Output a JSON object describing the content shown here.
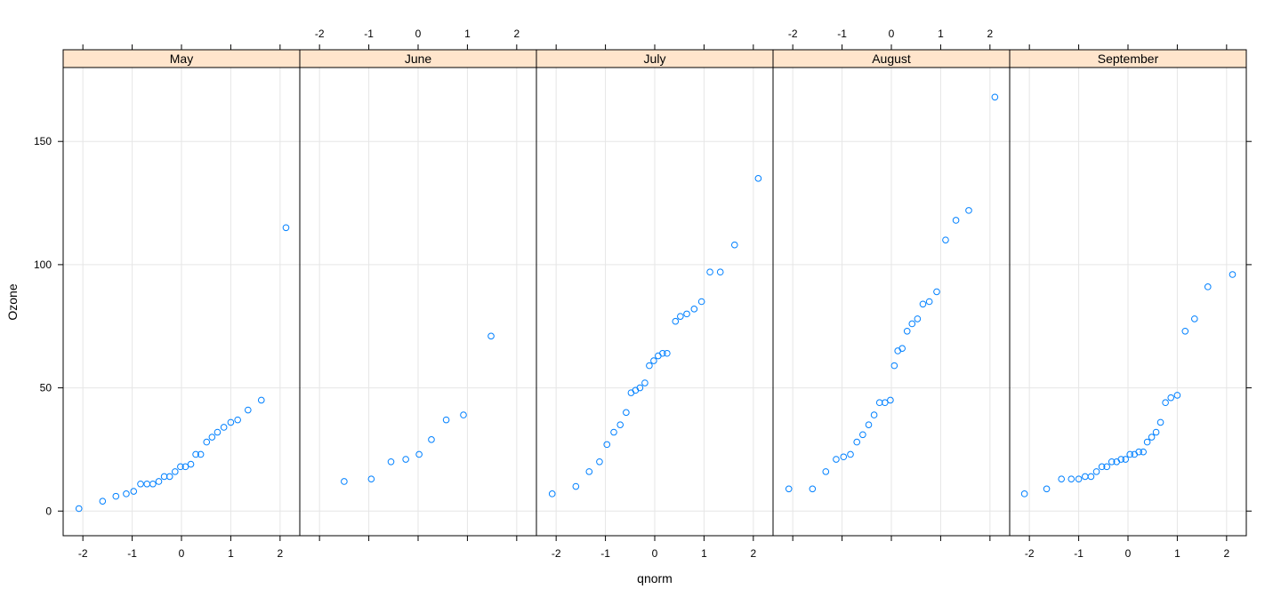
{
  "chart_data": {
    "type": "scatter",
    "subtype": "qq-plot-trellis",
    "xlabel": "qnorm",
    "ylabel": "Ozone",
    "xlim": [
      -2.4,
      2.4
    ],
    "ylim": [
      -10,
      180
    ],
    "x_ticks": [
      -2,
      -1,
      0,
      1,
      2
    ],
    "y_ticks": [
      0,
      50,
      100,
      150
    ],
    "grid": true,
    "colors": {
      "point": "#0080ff",
      "strip_bg": "#ffe5cc",
      "grid": "#e6e6e6",
      "axis": "#000000"
    },
    "panels": [
      {
        "name": "May",
        "points": [
          [
            -2.08,
            1
          ],
          [
            -1.6,
            4
          ],
          [
            -1.33,
            6
          ],
          [
            -1.12,
            7
          ],
          [
            -0.97,
            8
          ],
          [
            -0.83,
            11
          ],
          [
            -0.7,
            11
          ],
          [
            -0.58,
            11
          ],
          [
            -0.46,
            12
          ],
          [
            -0.35,
            14
          ],
          [
            -0.24,
            14
          ],
          [
            -0.13,
            16
          ],
          [
            -0.02,
            18
          ],
          [
            0.08,
            18
          ],
          [
            0.19,
            19
          ],
          [
            0.29,
            23
          ],
          [
            0.39,
            23
          ],
          [
            0.51,
            28
          ],
          [
            0.62,
            30
          ],
          [
            0.73,
            32
          ],
          [
            0.86,
            34
          ],
          [
            1.0,
            36
          ],
          [
            1.14,
            37
          ],
          [
            1.35,
            41
          ],
          [
            1.62,
            45
          ],
          [
            2.12,
            115
          ]
        ]
      },
      {
        "name": "June",
        "points": [
          [
            -1.5,
            12
          ],
          [
            -0.95,
            13
          ],
          [
            -0.55,
            20
          ],
          [
            -0.25,
            21
          ],
          [
            0.02,
            23
          ],
          [
            0.27,
            29
          ],
          [
            0.57,
            37
          ],
          [
            0.92,
            39
          ],
          [
            1.48,
            71
          ]
        ]
      },
      {
        "name": "July",
        "points": [
          [
            -2.08,
            7
          ],
          [
            -1.6,
            10
          ],
          [
            -1.33,
            16
          ],
          [
            -1.12,
            20
          ],
          [
            -0.97,
            27
          ],
          [
            -0.83,
            32
          ],
          [
            -0.7,
            35
          ],
          [
            -0.58,
            40
          ],
          [
            -0.48,
            48
          ],
          [
            -0.39,
            49
          ],
          [
            -0.3,
            50
          ],
          [
            -0.2,
            52
          ],
          [
            -0.11,
            59
          ],
          [
            -0.02,
            61
          ],
          [
            0.07,
            63
          ],
          [
            0.16,
            64
          ],
          [
            0.25,
            64
          ],
          [
            0.42,
            77
          ],
          [
            0.52,
            79
          ],
          [
            0.65,
            80
          ],
          [
            0.8,
            82
          ],
          [
            0.95,
            85
          ],
          [
            1.12,
            97
          ],
          [
            1.33,
            97
          ],
          [
            1.62,
            108
          ],
          [
            2.1,
            135
          ]
        ]
      },
      {
        "name": "August",
        "points": [
          [
            -2.08,
            9
          ],
          [
            -1.6,
            9
          ],
          [
            -1.33,
            16
          ],
          [
            -1.12,
            21
          ],
          [
            -0.97,
            22
          ],
          [
            -0.83,
            23
          ],
          [
            -0.7,
            28
          ],
          [
            -0.58,
            31
          ],
          [
            -0.46,
            35
          ],
          [
            -0.35,
            39
          ],
          [
            -0.24,
            44
          ],
          [
            -0.13,
            44
          ],
          [
            -0.02,
            45
          ],
          [
            0.06,
            59
          ],
          [
            0.13,
            65
          ],
          [
            0.22,
            66
          ],
          [
            0.32,
            73
          ],
          [
            0.42,
            76
          ],
          [
            0.53,
            78
          ],
          [
            0.64,
            84
          ],
          [
            0.77,
            85
          ],
          [
            0.92,
            89
          ],
          [
            1.1,
            110
          ],
          [
            1.31,
            118
          ],
          [
            1.57,
            122
          ],
          [
            2.1,
            168
          ]
        ]
      },
      {
        "name": "September",
        "points": [
          [
            -2.1,
            7
          ],
          [
            -1.65,
            9
          ],
          [
            -1.35,
            13
          ],
          [
            -1.15,
            13
          ],
          [
            -1.0,
            13
          ],
          [
            -0.87,
            14
          ],
          [
            -0.75,
            14
          ],
          [
            -0.64,
            16
          ],
          [
            -0.53,
            18
          ],
          [
            -0.43,
            18
          ],
          [
            -0.33,
            20
          ],
          [
            -0.23,
            20
          ],
          [
            -0.14,
            21
          ],
          [
            -0.05,
            21
          ],
          [
            0.04,
            23
          ],
          [
            0.13,
            23
          ],
          [
            0.22,
            24
          ],
          [
            0.31,
            24
          ],
          [
            0.39,
            28
          ],
          [
            0.48,
            30
          ],
          [
            0.57,
            32
          ],
          [
            0.66,
            36
          ],
          [
            0.76,
            44
          ],
          [
            0.87,
            46
          ],
          [
            1.0,
            47
          ],
          [
            1.16,
            73
          ],
          [
            1.35,
            78
          ],
          [
            1.62,
            91
          ],
          [
            2.12,
            96
          ]
        ]
      }
    ]
  }
}
